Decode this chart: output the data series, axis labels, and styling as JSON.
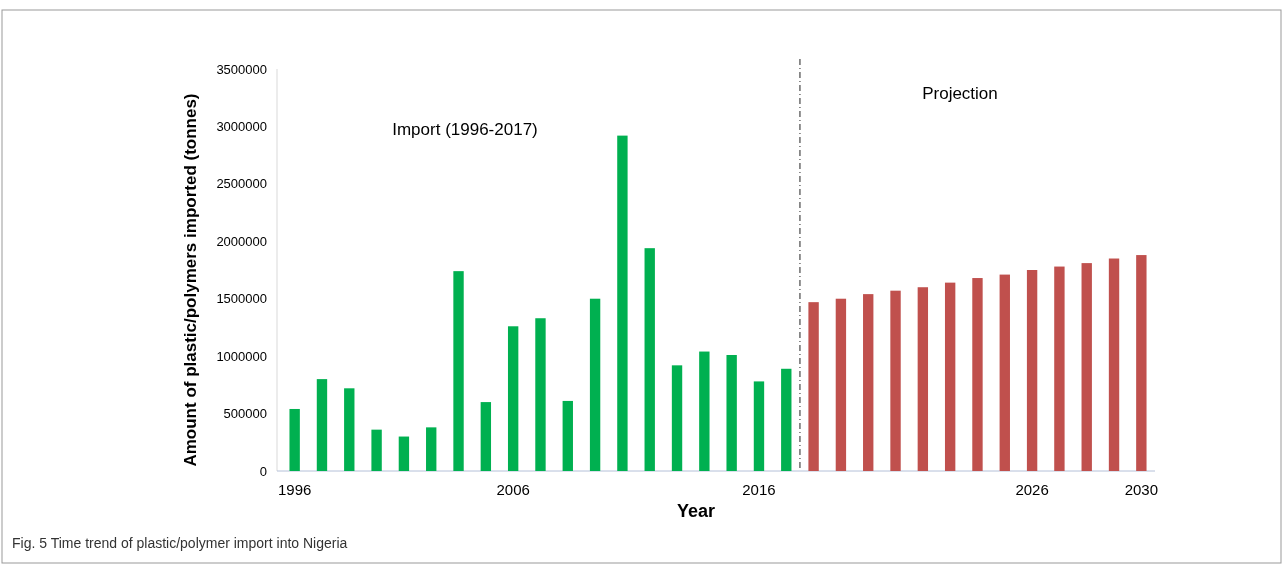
{
  "chart_data": {
    "type": "bar",
    "xlabel": "Year",
    "ylabel": "Amount of plastic/polymers imported (tonnes)",
    "categories": [
      "1996",
      null,
      null,
      null,
      null,
      null,
      null,
      null,
      "2006",
      null,
      null,
      null,
      null,
      null,
      null,
      null,
      null,
      "2016",
      null,
      null,
      null,
      null,
      null,
      null,
      null,
      null,
      null,
      "2026",
      null,
      null,
      null,
      "2030"
    ],
    "series": [
      {
        "color": "#00b050",
        "values": [
          540000,
          800000,
          720000,
          360000,
          300000,
          380000,
          1740000,
          600000,
          1260000,
          1330000,
          610000,
          1500000,
          2920000,
          1940000,
          920000,
          1040000,
          1010000,
          780000,
          890000,
          null,
          null,
          null,
          null,
          null,
          null,
          null,
          null,
          null,
          null,
          null,
          null,
          null
        ]
      },
      {
        "color": "#c0504d",
        "values": [
          null,
          null,
          null,
          null,
          null,
          null,
          null,
          null,
          null,
          null,
          null,
          null,
          null,
          null,
          null,
          null,
          null,
          null,
          null,
          1470000,
          1500000,
          1540000,
          1570000,
          1600000,
          1640000,
          1680000,
          1710000,
          1750000,
          1780000,
          1810000,
          1850000,
          1880000
        ]
      }
    ],
    "ylim": [
      0,
      3500000
    ],
    "yticks": [
      0,
      500000,
      1000000,
      1500000,
      2000000,
      2500000,
      3000000,
      3500000
    ],
    "annotations": [
      "Import (1996-2017)",
      "Projection",
      "Fig. 5 Time trend of plastic/polymer import into Nigeria"
    ]
  }
}
